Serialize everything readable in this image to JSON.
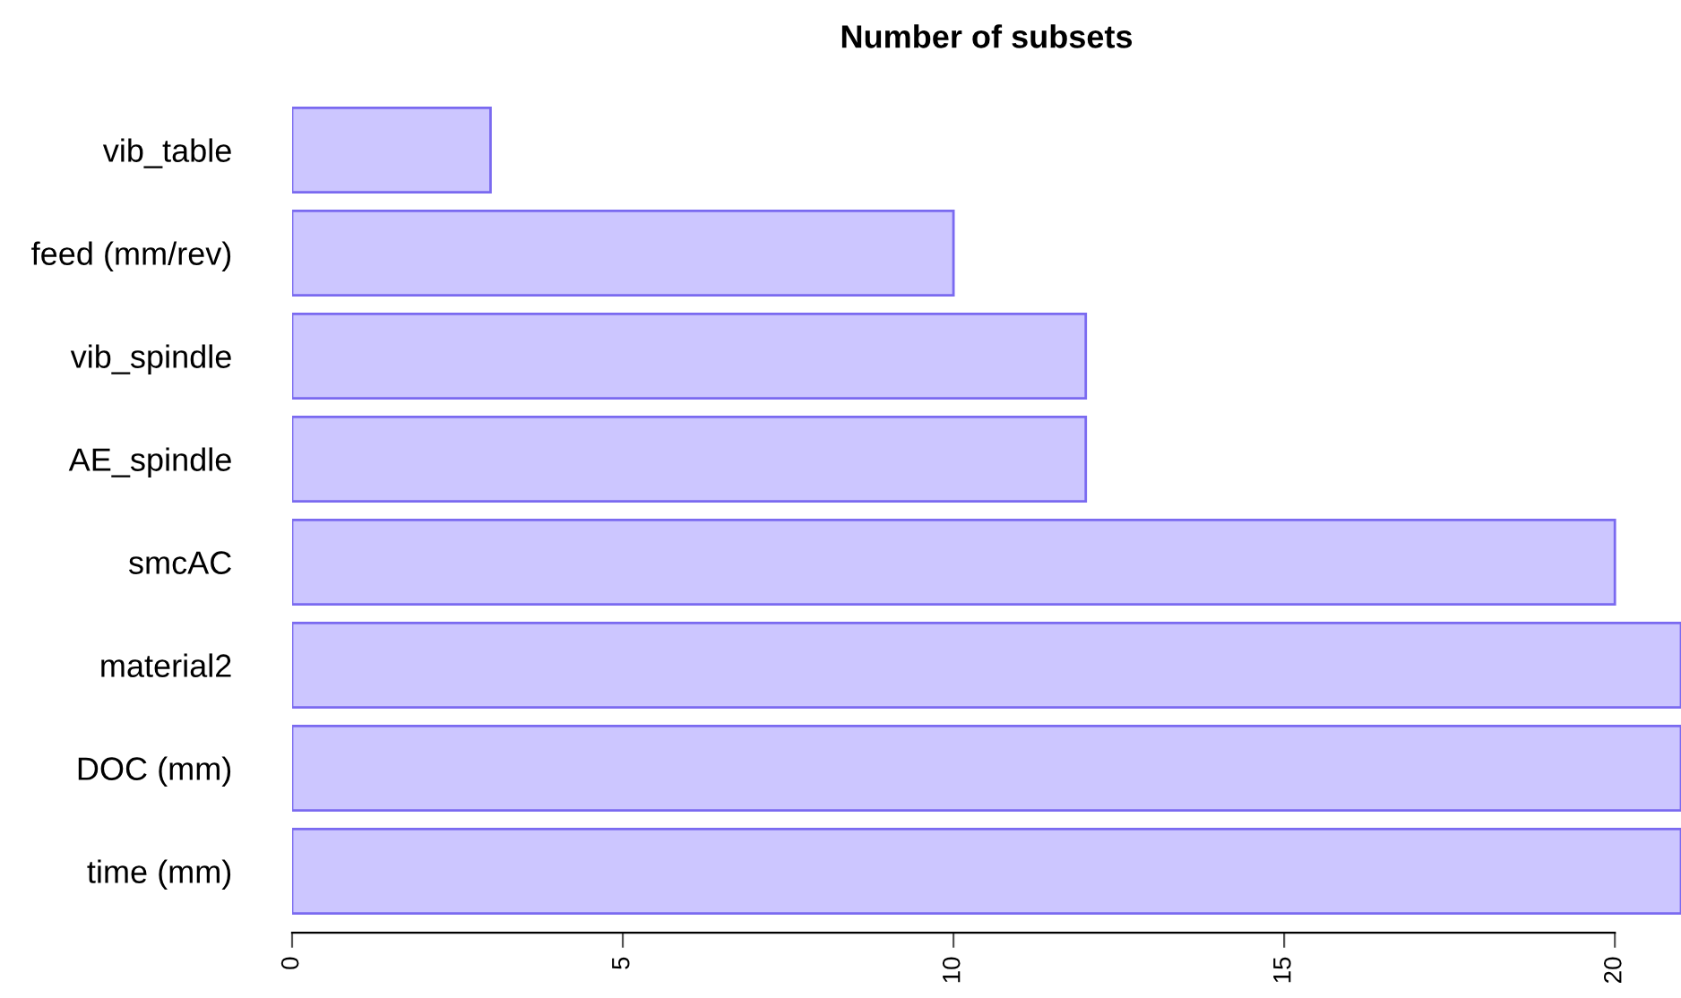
{
  "chart_data": {
    "type": "bar",
    "orientation": "horizontal",
    "title": "Number of subsets",
    "categories": [
      "vib_table",
      "feed (mm/rev)",
      "vib_spindle",
      "AE_spindle",
      "smcAC",
      "material2",
      "DOC (mm)",
      "time (mm)"
    ],
    "values": [
      3,
      10,
      12,
      12,
      20,
      21,
      21,
      21
    ],
    "color": "#ccc6ff",
    "xlim": [
      0,
      21
    ],
    "xticks": [
      0,
      5,
      10,
      15,
      20
    ],
    "grid": false,
    "legend": false
  }
}
